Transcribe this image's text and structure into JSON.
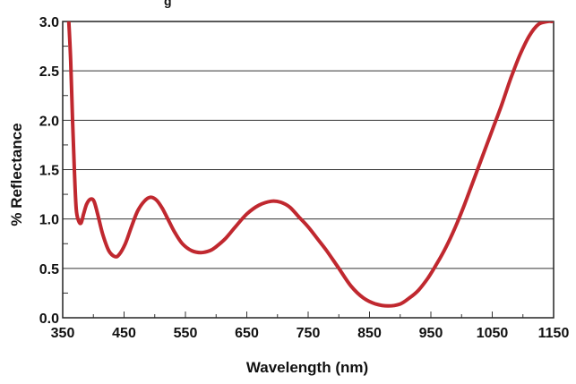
{
  "chart_data": {
    "type": "line",
    "title_fragment": "g",
    "xlabel": "Wavelength (nm)",
    "ylabel": "% Reflectance",
    "xlim": [
      350,
      1150
    ],
    "ylim": [
      0.0,
      3.0
    ],
    "x_ticks": [
      "350",
      "450",
      "550",
      "650",
      "750",
      "850",
      "950",
      "1050",
      "1150"
    ],
    "y_ticks": [
      "0.0",
      "0.5",
      "1.0",
      "1.5",
      "2.0",
      "2.5",
      "3.0"
    ],
    "grid": "horizontal",
    "series_color": "#c0282f",
    "series": [
      {
        "x": [
          360,
          363,
          366,
          369,
          372,
          376,
          380,
          384,
          389,
          395,
          401,
          407,
          415,
          425,
          435,
          442,
          452,
          462,
          472,
          483,
          493,
          503,
          513,
          523,
          533,
          545,
          560,
          575,
          590,
          600,
          615,
          630,
          650,
          670,
          690,
          705,
          720,
          735,
          750,
          765,
          780,
          800,
          820,
          840,
          860,
          880,
          900,
          915,
          930,
          945,
          960,
          975,
          990,
          1005,
          1020,
          1035,
          1050,
          1065,
          1080,
          1095,
          1110,
          1125,
          1140,
          1147
        ],
        "y": [
          3.0,
          2.6,
          2.0,
          1.5,
          1.1,
          0.98,
          0.96,
          1.05,
          1.15,
          1.2,
          1.18,
          1.05,
          0.85,
          0.68,
          0.62,
          0.64,
          0.75,
          0.92,
          1.08,
          1.18,
          1.22,
          1.19,
          1.1,
          0.98,
          0.86,
          0.75,
          0.68,
          0.66,
          0.68,
          0.72,
          0.8,
          0.91,
          1.05,
          1.14,
          1.18,
          1.17,
          1.12,
          1.02,
          0.92,
          0.8,
          0.68,
          0.5,
          0.32,
          0.2,
          0.14,
          0.12,
          0.14,
          0.2,
          0.28,
          0.4,
          0.55,
          0.72,
          0.92,
          1.15,
          1.4,
          1.65,
          1.9,
          2.15,
          2.42,
          2.66,
          2.85,
          2.97,
          3.0,
          3.0
        ]
      }
    ]
  }
}
